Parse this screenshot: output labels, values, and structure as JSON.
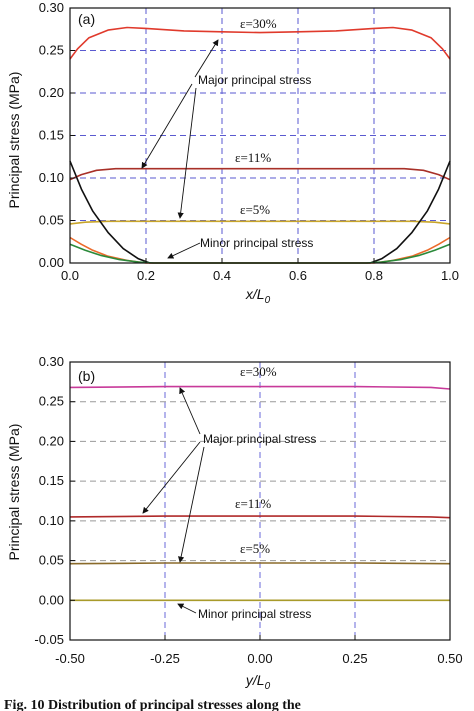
{
  "chart_data": [
    {
      "type": "line",
      "panel_label": "(a)",
      "xlabel": "x/L",
      "xlabel_sub": "0",
      "ylabel": "Principal stress (MPa)",
      "xlim": [
        0,
        1.0
      ],
      "ylim": [
        0,
        0.3
      ],
      "xticks": [
        "0.0",
        "0.2",
        "0.4",
        "0.6",
        "0.8",
        "1.0"
      ],
      "yticks": [
        "0.00",
        "0.05",
        "0.10",
        "0.15",
        "0.20",
        "0.25",
        "0.30"
      ],
      "grid": "dashed blue",
      "series": [
        {
          "color": "#e03a2c",
          "x": [
            0,
            0.02,
            0.05,
            0.1,
            0.15,
            0.2,
            0.3,
            0.4,
            0.5,
            0.6,
            0.7,
            0.8,
            0.85,
            0.9,
            0.95,
            0.98,
            1.0
          ],
          "y": [
            0.24,
            0.252,
            0.265,
            0.274,
            0.277,
            0.276,
            0.273,
            0.272,
            0.271,
            0.272,
            0.273,
            0.276,
            0.277,
            0.274,
            0.265,
            0.252,
            0.24
          ]
        },
        {
          "color": "#a83028",
          "x": [
            0,
            0.03,
            0.07,
            0.12,
            0.2,
            0.3,
            0.4,
            0.5,
            0.6,
            0.7,
            0.8,
            0.88,
            0.93,
            0.97,
            1.0
          ],
          "y": [
            0.098,
            0.104,
            0.109,
            0.111,
            0.111,
            0.111,
            0.111,
            0.111,
            0.111,
            0.111,
            0.111,
            0.111,
            0.109,
            0.104,
            0.098
          ]
        },
        {
          "color": "#c8a52a",
          "x": [
            0,
            0.04,
            0.1,
            0.2,
            0.3,
            0.5,
            0.7,
            0.8,
            0.9,
            0.96,
            1.0
          ],
          "y": [
            0.046,
            0.048,
            0.049,
            0.049,
            0.049,
            0.049,
            0.049,
            0.049,
            0.049,
            0.048,
            0.046
          ]
        },
        {
          "color": "#111111",
          "x": [
            0,
            0.03,
            0.06,
            0.1,
            0.14,
            0.18,
            0.21,
            0.25,
            0.5,
            0.75,
            0.79,
            0.82,
            0.86,
            0.9,
            0.94,
            0.97,
            1.0
          ],
          "y": [
            0.12,
            0.087,
            0.061,
            0.036,
            0.017,
            0.005,
            0.0,
            0.0,
            0.0,
            0.0,
            0.0,
            0.005,
            0.017,
            0.036,
            0.061,
            0.087,
            0.12
          ]
        },
        {
          "color": "#ec6a2a",
          "x": [
            0,
            0.03,
            0.06,
            0.1,
            0.15,
            0.2,
            0.25,
            0.5,
            0.75,
            0.8,
            0.85,
            0.9,
            0.94,
            0.97,
            1.0
          ],
          "y": [
            0.03,
            0.022,
            0.015,
            0.008,
            0.003,
            0.0,
            0.0,
            0.0,
            0.0,
            0.0,
            0.003,
            0.008,
            0.015,
            0.022,
            0.03
          ]
        },
        {
          "color": "#2b8a3a",
          "x": [
            0,
            0.04,
            0.08,
            0.13,
            0.18,
            0.22,
            0.5,
            0.78,
            0.82,
            0.87,
            0.92,
            0.96,
            1.0
          ],
          "y": [
            0.022,
            0.015,
            0.009,
            0.004,
            0.001,
            0.0,
            0.0,
            0.0,
            0.001,
            0.004,
            0.009,
            0.015,
            0.022
          ]
        }
      ],
      "annotations": {
        "eps30": "=30%",
        "eps11": "=11%",
        "eps5": "=5%",
        "major": "Major principal stress",
        "minor": "Minor principal stress"
      }
    },
    {
      "type": "line",
      "panel_label": "(b)",
      "xlabel": "y/L",
      "xlabel_sub": "0",
      "ylabel": "Principal stress (MPa)",
      "xlim": [
        -0.5,
        0.5
      ],
      "ylim": [
        -0.05,
        0.3
      ],
      "xticks": [
        "-0.50",
        "-0.25",
        "0.00",
        "0.25",
        "0.50"
      ],
      "yticks": [
        "-0.05",
        "0.00",
        "0.05",
        "0.10",
        "0.15",
        "0.20",
        "0.25",
        "0.30"
      ],
      "grid": "dashed",
      "series": [
        {
          "color": "#c83a9a",
          "x": [
            -0.5,
            -0.25,
            0,
            0.25,
            0.45,
            0.5
          ],
          "y": [
            0.268,
            0.269,
            0.269,
            0.269,
            0.268,
            0.266
          ]
        },
        {
          "color": "#b02a2a",
          "x": [
            -0.5,
            -0.25,
            0,
            0.25,
            0.45,
            0.5
          ],
          "y": [
            0.105,
            0.106,
            0.106,
            0.106,
            0.105,
            0.104
          ]
        },
        {
          "color": "#8a6a2a",
          "x": [
            -0.5,
            -0.25,
            0,
            0.25,
            0.5
          ],
          "y": [
            0.046,
            0.047,
            0.047,
            0.047,
            0.046
          ]
        },
        {
          "color": "#a89a2a",
          "x": [
            -0.5,
            -0.25,
            0,
            0.25,
            0.5
          ],
          "y": [
            0.0,
            0.0,
            0.0,
            0.0,
            0.0
          ]
        }
      ],
      "annotations": {
        "eps30": "=30%",
        "eps11": "=11%",
        "eps5": "=5%",
        "major": "Major principal stress",
        "minor": "Minor principal stress"
      }
    }
  ],
  "epsilon_symbol": "ε",
  "caption": "Fig. 10    Distribution of principal stresses along the"
}
